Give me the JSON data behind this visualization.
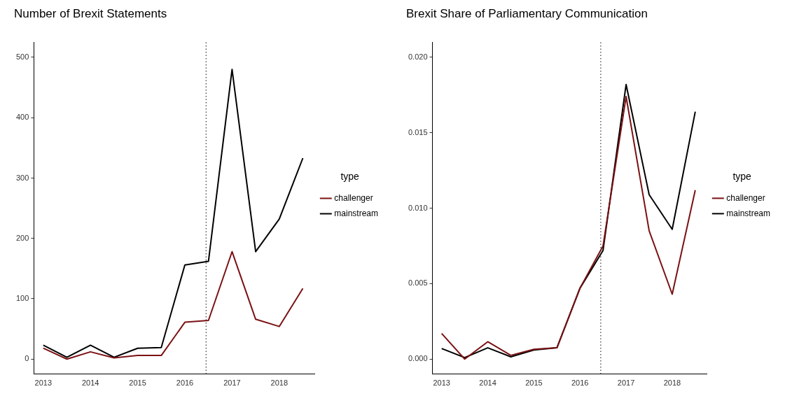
{
  "chart_data": [
    {
      "type": "line",
      "title": "Number of Brexit Statements",
      "legend_title": "type",
      "legend": "right",
      "grid": false,
      "marker": "none",
      "line_style": "solid",
      "x": [
        2013,
        2013.5,
        2014,
        2014.5,
        2015,
        2015.5,
        2016,
        2016.5,
        2017,
        2017.5,
        2018,
        2018.5
      ],
      "series": [
        {
          "name": "challenger",
          "color": "#7b1113",
          "values": [
            18,
            0,
            12,
            2,
            6,
            6,
            61,
            64,
            178,
            66,
            54,
            117
          ]
        },
        {
          "name": "mainstream",
          "color": "#000000",
          "values": [
            23,
            3,
            23,
            3,
            18,
            19,
            156,
            162,
            480,
            178,
            232,
            333
          ]
        }
      ],
      "xlim": [
        2012.8,
        2018.75
      ],
      "xticks": [
        2013,
        2014,
        2015,
        2016,
        2017,
        2018
      ],
      "ylim": [
        -25,
        525
      ],
      "yticks": [
        0,
        100,
        200,
        300,
        400,
        500
      ],
      "ref_lines": [
        {
          "axis": "x",
          "value": 2016.45,
          "line_style": "dotted",
          "color": "#333333"
        }
      ]
    },
    {
      "type": "line",
      "title": "Brexit Share of Parliamentary Communication",
      "legend_title": "type",
      "legend": "right",
      "grid": false,
      "marker": "none",
      "line_style": "solid",
      "x": [
        2013,
        2013.5,
        2014,
        2014.5,
        2015,
        2015.5,
        2016,
        2016.5,
        2017,
        2017.5,
        2018,
        2018.5
      ],
      "series": [
        {
          "name": "challenger",
          "color": "#7b1113",
          "values": [
            0.0017,
            0.0,
            0.00115,
            0.00025,
            0.00065,
            0.00075,
            0.0047,
            0.0075,
            0.0174,
            0.0085,
            0.0043,
            0.0112
          ]
        },
        {
          "name": "mainstream",
          "color": "#000000",
          "values": [
            0.0007,
            0.0001,
            0.00075,
            0.00015,
            0.0006,
            0.00075,
            0.0047,
            0.0072,
            0.0182,
            0.0109,
            0.0086,
            0.0164
          ]
        }
      ],
      "xlim": [
        2012.8,
        2018.75
      ],
      "xticks": [
        2013,
        2014,
        2015,
        2016,
        2017,
        2018
      ],
      "ylim": [
        -0.001,
        0.021
      ],
      "yticks": [
        {
          "value": 0,
          "label": "0.000"
        },
        {
          "value": 0.005,
          "label": "0.005"
        },
        {
          "value": 0.01,
          "label": "0.010"
        },
        {
          "value": 0.015,
          "label": "0.015"
        },
        {
          "value": 0.02,
          "label": "0.020"
        }
      ],
      "ref_lines": [
        {
          "axis": "x",
          "value": 2016.45,
          "line_style": "dotted",
          "color": "#333333"
        }
      ]
    }
  ]
}
